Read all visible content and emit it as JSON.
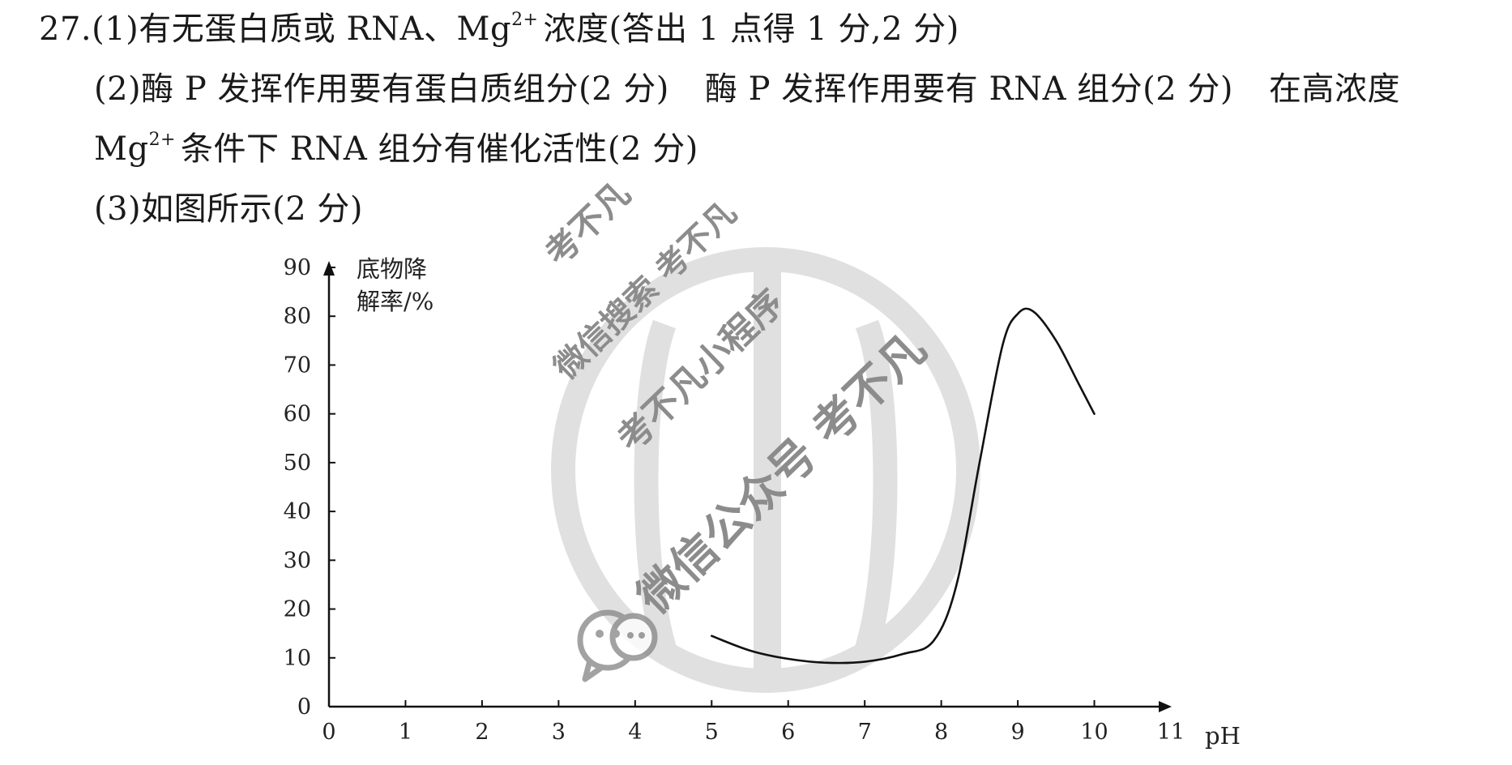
{
  "answer": {
    "line1": {
      "prefix": "27.(1)有无蛋白质或 RNA、Mg",
      "sup": "2+",
      "suffix": "浓度(答出 1 点得 1 分,2 分)"
    },
    "line2": {
      "seg1": "(2)酶 P 发挥作用要有蛋白质组分(2 分)",
      "seg2": "酶 P 发挥作用要有 RNA 组分(2 分)",
      "seg3": "在高浓度"
    },
    "line3": {
      "prefix": "Mg",
      "sup": "2+",
      "suffix": "条件下 RNA 组分有催化活性(2 分)"
    },
    "line4": "(3)如图所示(2 分)"
  },
  "watermark": {
    "texts": [
      "考不凡",
      "微信搜索 考不凡",
      "考不凡小程序",
      "微信公众号 考不凡"
    ],
    "color": "#c8c8c8",
    "text_color": "#8c8c8c"
  },
  "chart_data": {
    "type": "line",
    "ylabel_line1": "底物降",
    "ylabel_line2": "解率/%",
    "xlabel": "pH",
    "xlim": [
      0,
      11
    ],
    "ylim": [
      0,
      90
    ],
    "x_ticks": [
      0,
      1,
      2,
      3,
      4,
      5,
      6,
      7,
      8,
      9,
      10,
      11
    ],
    "y_ticks": [
      0,
      10,
      20,
      30,
      40,
      50,
      60,
      70,
      80,
      90
    ],
    "grid": false,
    "series": [
      {
        "x": [
          5.0,
          5.5,
          6.0,
          6.5,
          7.0,
          7.5,
          7.9,
          8.2,
          8.5,
          8.8,
          9.0,
          9.2,
          9.5,
          9.8,
          10.0
        ],
        "y": [
          14.5,
          11.5,
          9.8,
          9.0,
          9.2,
          10.8,
          13.5,
          25,
          50,
          74,
          80.5,
          81,
          75,
          66,
          60
        ]
      }
    ],
    "line_color": "#111111"
  }
}
